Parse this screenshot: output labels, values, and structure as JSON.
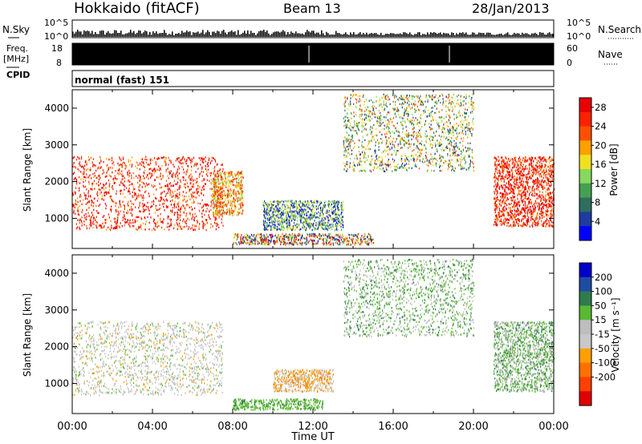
{
  "header": {
    "station": "Hokkaido (fitACF)",
    "beam": "Beam 13",
    "date": "28/Jan/2013"
  },
  "strips": {
    "nsky_label": "N.Sky",
    "nsky_ticks": [
      "10^5",
      "10^0"
    ],
    "nsearch_label": "N.Search",
    "freq_label": "Freq.",
    "freq_unit": "[MHz]",
    "freq_ticks": [
      "18",
      "8"
    ],
    "nave_label": "Nave",
    "nave_ticks": [
      "60",
      "0"
    ],
    "cpid_label": "CPID",
    "cpid_text": "normal (fast) 151"
  },
  "colors": {
    "power": [
      "#0000ff",
      "#1e3ca0",
      "#2e6e5e",
      "#44a050",
      "#86d85e",
      "#f0e020",
      "#ffa000",
      "#ff5000",
      "#ff2000",
      "#e80000"
    ],
    "velocity": [
      "#0000c8",
      "#1e4ca0",
      "#2e7c4e",
      "#5ab832",
      "#bebebe",
      "#c8c8c8",
      "#ffa000",
      "#ff7000",
      "#ff4000",
      "#e00000"
    ]
  },
  "chart_data": [
    {
      "type": "heatmap",
      "title": "",
      "panel": "power",
      "xlabel": "",
      "ylabel": "Slant Range [km]",
      "xlim": [
        "00:00",
        "24:00"
      ],
      "ylim": [
        180,
        4500
      ],
      "x_ticks": [
        "00:00",
        "04:00",
        "08:00",
        "12:00",
        "16:00",
        "20:00",
        "00:00"
      ],
      "y_ticks": [
        1000,
        2000,
        3000,
        4000
      ],
      "colorbar": {
        "label": "Power [dB]",
        "ticks": [
          4,
          8,
          12,
          16,
          20,
          24,
          28
        ],
        "range": [
          0,
          30
        ]
      },
      "regions": [
        {
          "t_start": 0.0,
          "t_end": 7.5,
          "r_min": 700,
          "r_max": 2700,
          "level": "28"
        },
        {
          "t_start": 7.0,
          "t_end": 8.5,
          "r_min": 1100,
          "r_max": 2300,
          "level": "16-24"
        },
        {
          "t_start": 8.0,
          "t_end": 15.0,
          "r_min": 300,
          "r_max": 600,
          "level": "4-28"
        },
        {
          "t_start": 9.5,
          "t_end": 13.5,
          "r_min": 700,
          "r_max": 1500,
          "level": "4-16"
        },
        {
          "t_start": 13.5,
          "t_end": 20.0,
          "r_min": 2300,
          "r_max": 4400,
          "level": "8-24"
        },
        {
          "t_start": 21.0,
          "t_end": 24.0,
          "r_min": 800,
          "r_max": 2700,
          "level": "28"
        }
      ]
    },
    {
      "type": "heatmap",
      "title": "",
      "panel": "velocity",
      "xlabel": "Time UT",
      "ylabel": "Slant Range [km]",
      "xlim": [
        "00:00",
        "24:00"
      ],
      "ylim": [
        180,
        4500
      ],
      "x_ticks": [
        "00:00",
        "04:00",
        "08:00",
        "12:00",
        "16:00",
        "20:00",
        "00:00"
      ],
      "y_ticks": [
        1000,
        2000,
        3000,
        4000
      ],
      "colorbar": {
        "label": "Velocity [m s⁻¹]",
        "ticks": [
          200,
          100,
          50,
          15,
          -15,
          -50,
          -100,
          -200
        ],
        "range": [
          -250,
          250
        ]
      },
      "regions": [
        {
          "t_start": 0.0,
          "t_end": 7.5,
          "r_min": 700,
          "r_max": 2700,
          "velocity": "-15 to 15"
        },
        {
          "t_start": 8.0,
          "t_end": 12.5,
          "r_min": 300,
          "r_max": 600,
          "velocity": "50 to 100"
        },
        {
          "t_start": 10.0,
          "t_end": 13.0,
          "r_min": 800,
          "r_max": 1400,
          "velocity": "-50 to 15"
        },
        {
          "t_start": 13.5,
          "t_end": 20.0,
          "r_min": 2300,
          "r_max": 4400,
          "velocity": "15 to 50"
        },
        {
          "t_start": 21.0,
          "t_end": 24.0,
          "r_min": 800,
          "r_max": 2700,
          "velocity": "15 to 50"
        }
      ]
    }
  ]
}
